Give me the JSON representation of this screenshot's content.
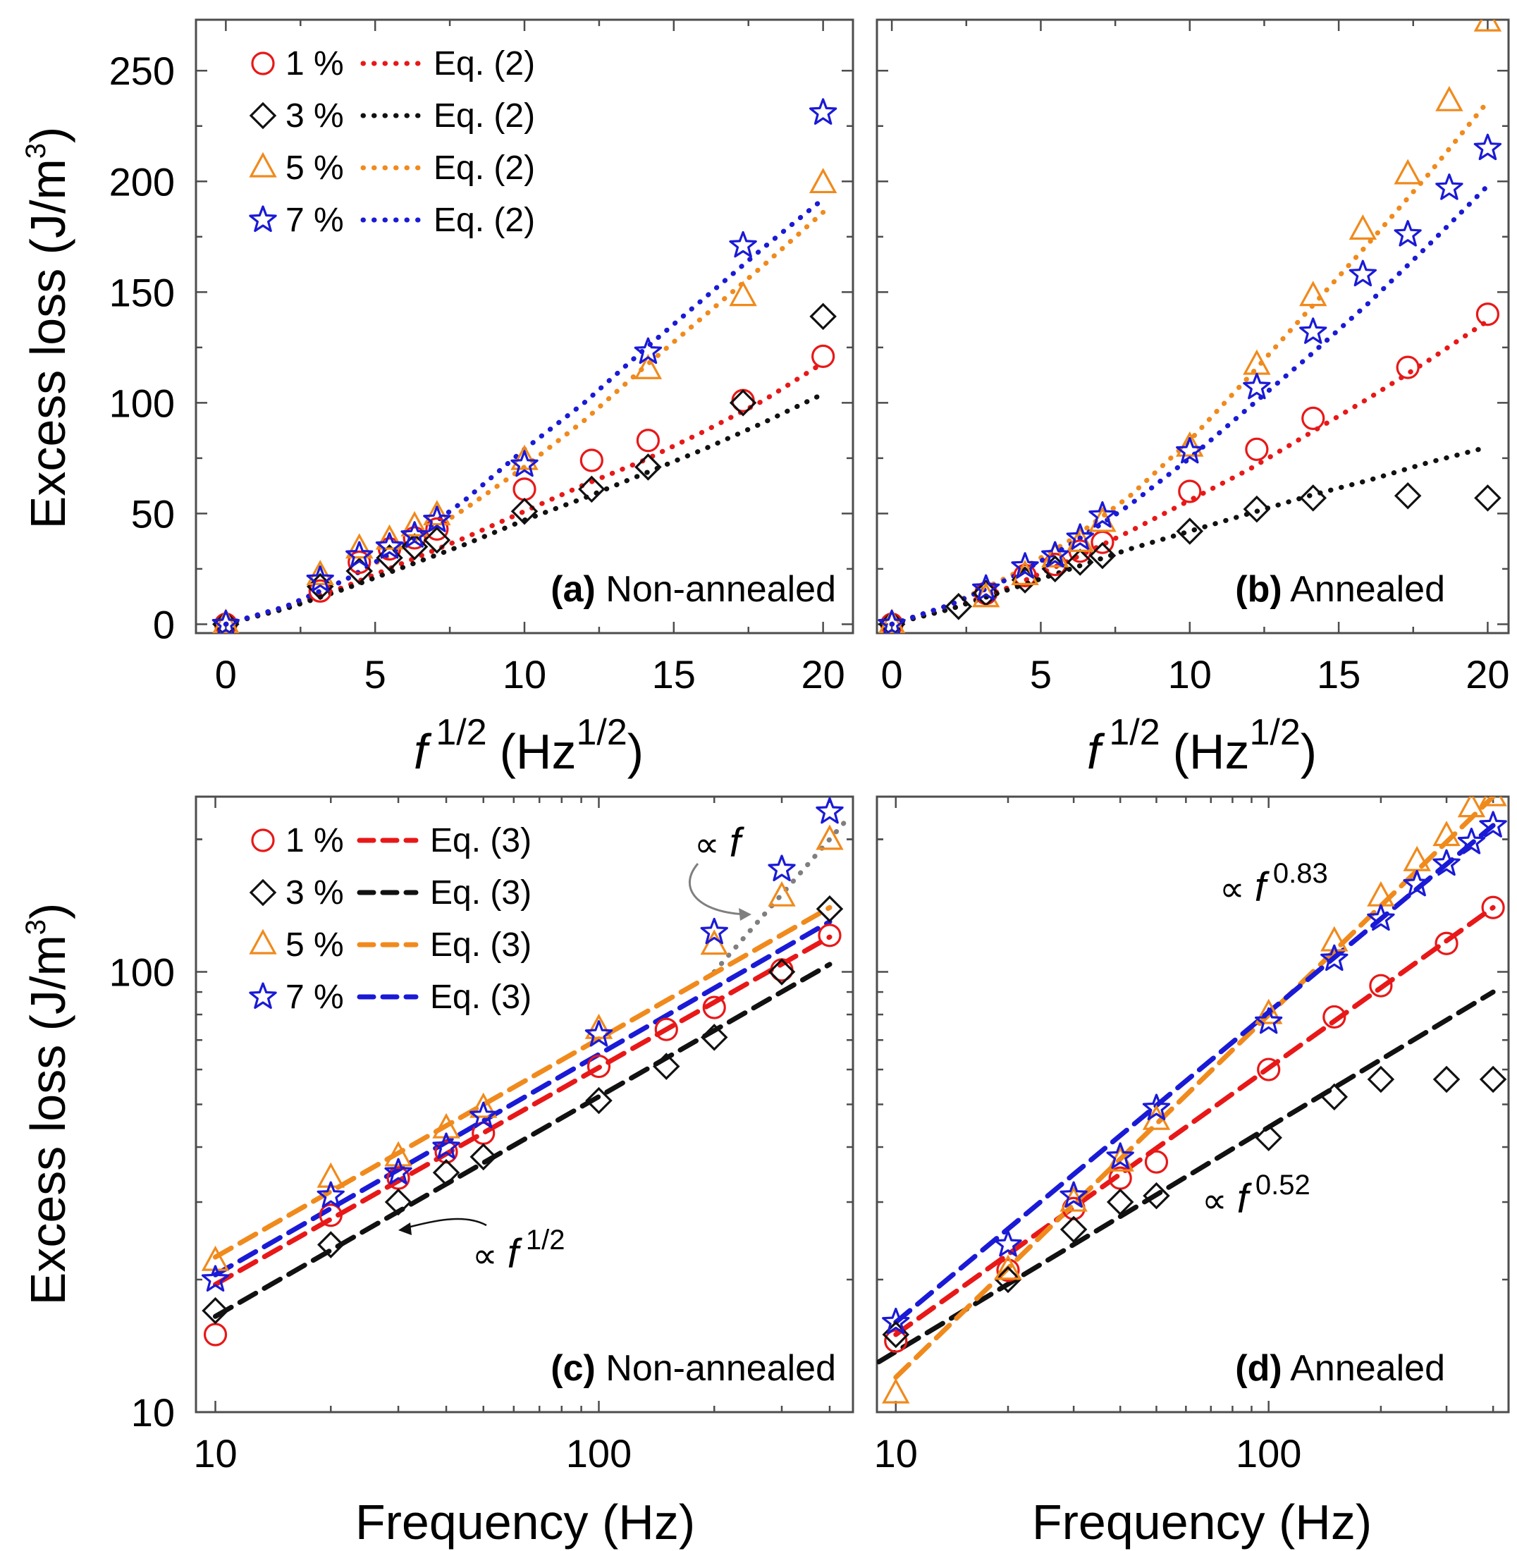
{
  "colors": {
    "1": "#e81818",
    "3": "#111111",
    "5": "#f08a1c",
    "7": "#1a1ad6",
    "grey": "#7f7f7f"
  },
  "markers": {
    "1": "circle",
    "3": "diamond",
    "5": "triangle",
    "7": "star"
  },
  "fit_labels": {
    "sqrt": "Eq. (2)",
    "log": "Eq. (3)"
  },
  "series_labels": [
    "1 %",
    "3 %",
    "5 %",
    "7 %"
  ],
  "y_label": "Excess loss (J/m",
  "y_label_sup": "3",
  "y_label_close": ")",
  "x_label_sqrt": {
    "base": "f",
    "sup": "1/2",
    "unit": "(Hz",
    "unit_sup": "1/2",
    "close": ")"
  },
  "x_label_freq": "Frequency (Hz)",
  "chart_data": [
    {
      "type": "scatter",
      "panel_tag": "(a)",
      "panel_text": "Non-annealed",
      "xscale": "linear",
      "yscale": "linear",
      "xlim": [
        -1,
        21
      ],
      "ylim": [
        -4,
        273
      ],
      "xticks": [
        0,
        5,
        10,
        15,
        20
      ],
      "yticks": [
        0,
        50,
        100,
        150,
        200,
        250
      ],
      "legend_position": "top-left",
      "series": [
        {
          "key": "1",
          "name": "1 %",
          "x": [
            0,
            3.16,
            4.47,
            5.48,
            6.32,
            7.07,
            10,
            12.25,
            14.14,
            17.32,
            20
          ],
          "y": [
            0,
            15,
            28,
            34,
            39,
            43,
            61,
            74,
            83,
            101,
            121
          ],
          "fit_x": [
            0,
            2,
            4,
            6,
            8,
            10,
            12,
            14,
            16,
            18,
            20
          ],
          "fit_y": [
            0,
            7.5,
            17,
            28,
            39,
            51,
            63,
            74,
            87,
            101,
            118
          ]
        },
        {
          "key": "3",
          "name": "3 %",
          "x": [
            0,
            3.16,
            4.47,
            5.48,
            6.32,
            7.07,
            10,
            12.25,
            14.14,
            17.32,
            20
          ],
          "y": [
            0,
            17,
            24,
            30,
            35,
            38,
            51,
            61,
            71,
            100,
            139
          ],
          "fit_x": [
            0,
            2,
            4,
            6,
            8,
            10,
            12,
            14,
            16,
            18,
            20
          ],
          "fit_y": [
            0,
            7,
            16,
            26,
            36,
            47,
            57,
            68,
            79,
            91,
            104
          ]
        },
        {
          "key": "5",
          "name": "5 %",
          "x": [
            0,
            3.16,
            4.47,
            5.48,
            6.32,
            7.07,
            10,
            14.14,
            17.32,
            20
          ],
          "y": [
            0,
            22,
            34,
            38,
            44,
            49,
            74,
            115,
            148,
            199
          ],
          "fit_x": [
            0,
            2,
            4,
            6,
            8,
            10,
            12,
            14,
            16,
            18,
            20
          ],
          "fit_y": [
            0,
            8,
            20,
            35,
            52,
            71,
            92,
            116,
            139,
            162,
            186
          ]
        },
        {
          "key": "7",
          "name": "7 %",
          "x": [
            0,
            3.16,
            4.47,
            5.48,
            6.32,
            7.07,
            10,
            14.14,
            17.32,
            20
          ],
          "y": [
            0,
            20,
            31,
            35,
            40,
            47,
            72,
            123,
            171,
            231
          ],
          "fit_x": [
            0,
            2,
            4,
            6,
            8,
            10,
            12,
            14,
            16,
            18,
            20
          ],
          "fit_y": [
            0,
            8,
            20,
            36,
            56,
            79,
            100,
            124,
            147,
            170,
            192
          ]
        }
      ]
    },
    {
      "type": "scatter",
      "panel_tag": "(b)",
      "panel_text": "Annealed",
      "xscale": "linear",
      "yscale": "linear",
      "xlim": [
        -0.5,
        20.7
      ],
      "ylim": [
        -4,
        273
      ],
      "xticks": [
        0,
        5,
        10,
        15,
        20
      ],
      "yticks": [
        0,
        50,
        100,
        150,
        200,
        250
      ],
      "series": [
        {
          "key": "1",
          "name": "1 %",
          "x": [
            0,
            3.16,
            4.47,
            5.48,
            6.32,
            7.07,
            10,
            12.25,
            14.14,
            17.32,
            20
          ],
          "y": [
            0,
            14,
            22,
            27,
            33,
            37,
            60,
            79,
            93,
            116,
            140
          ],
          "fit_x": [
            0,
            2,
            4,
            6,
            8,
            10,
            12,
            14,
            16,
            18,
            20
          ],
          "fit_y": [
            0,
            7,
            17,
            29,
            42,
            56,
            70,
            86,
            102,
            119,
            137
          ]
        },
        {
          "key": "3",
          "name": "3 %",
          "x": [
            0,
            2.24,
            3.16,
            4.47,
            5.48,
            6.32,
            7.07,
            10,
            12.25,
            14.14,
            17.32,
            20
          ],
          "y": [
            0,
            8,
            14,
            20,
            25,
            28,
            31,
            42,
            52,
            57,
            58,
            57
          ],
          "fit_x": [
            0,
            2,
            4,
            6,
            8,
            10,
            12,
            14,
            16,
            18,
            20
          ],
          "fit_y": [
            0,
            7,
            16,
            25,
            34,
            42,
            50,
            58,
            65,
            73,
            80
          ]
        },
        {
          "key": "5",
          "name": "5 %",
          "x": [
            0,
            3.16,
            4.47,
            5.48,
            6.32,
            7.07,
            10,
            12.25,
            14.14,
            15.81,
            17.32,
            18.71,
            20
          ],
          "y": [
            0,
            12,
            22,
            30,
            37,
            46,
            80,
            117,
            148,
            178,
            203,
            236,
            272
          ],
          "fit_x": [
            0,
            2,
            4,
            6,
            8,
            10,
            12,
            14,
            16,
            18,
            20
          ],
          "fit_y": [
            0,
            9,
            22,
            38,
            58,
            83,
            112,
            142,
            172,
            203,
            236
          ]
        },
        {
          "key": "7",
          "name": "7 %",
          "x": [
            0,
            3.16,
            4.47,
            5.48,
            6.32,
            7.07,
            10,
            12.25,
            14.14,
            15.81,
            17.32,
            18.71,
            20
          ],
          "y": [
            0,
            16,
            26,
            31,
            39,
            49,
            78,
            107,
            132,
            158,
            176,
            197,
            215
          ],
          "fit_x": [
            0,
            2,
            4,
            6,
            8,
            10,
            12,
            14,
            16,
            18,
            20
          ],
          "fit_y": [
            0,
            9,
            21,
            36,
            54,
            75,
            98,
            121,
            145,
            171,
            198
          ]
        }
      ]
    },
    {
      "type": "scatter",
      "panel_tag": "(c)",
      "panel_text": "Non-annealed",
      "xscale": "log",
      "yscale": "log",
      "xlim": [
        8.9,
        460
      ],
      "ylim": [
        10,
        250
      ],
      "xticks": [
        10,
        100
      ],
      "yticks": [
        10,
        100
      ],
      "legend_position": "top-left",
      "annotations": [
        {
          "id": "prop-f",
          "sym": "∝",
          "base": "f",
          "sup": "",
          "color": "grey"
        },
        {
          "id": "prop-sqrt",
          "sym": "∝",
          "base": "f",
          "sup": "1/2",
          "color": "3"
        }
      ],
      "guide_line": {
        "x": [
          200,
          440
        ],
        "y": [
          100,
          220
        ],
        "color": "grey"
      },
      "series": [
        {
          "key": "1",
          "name": "1 %",
          "x": [
            10,
            20,
            30,
            40,
            50,
            100,
            150,
            200,
            300,
            400
          ],
          "y": [
            15,
            28,
            34,
            39,
            43,
            61,
            74,
            83,
            101,
            121
          ],
          "fit_x": [
            10,
            400
          ],
          "fit_y": [
            19.5,
            120
          ]
        },
        {
          "key": "3",
          "name": "3 %",
          "x": [
            10,
            20,
            30,
            40,
            50,
            100,
            150,
            200,
            300,
            400
          ],
          "y": [
            17,
            24,
            30,
            35,
            38,
            51,
            61,
            71,
            100,
            139
          ],
          "fit_x": [
            10,
            400
          ],
          "fit_y": [
            16.5,
            104
          ]
        },
        {
          "key": "5",
          "name": "5 %",
          "x": [
            10,
            20,
            30,
            40,
            50,
            100,
            200,
            300,
            400
          ],
          "y": [
            22,
            34,
            38,
            44,
            49,
            74,
            115,
            148,
            199
          ],
          "fit_x": [
            10,
            400
          ],
          "fit_y": [
            22.5,
            140
          ]
        },
        {
          "key": "7",
          "name": "7 %",
          "x": [
            10,
            20,
            30,
            40,
            50,
            100,
            200,
            300,
            400
          ],
          "y": [
            20,
            31,
            35,
            40,
            47,
            72,
            123,
            171,
            231
          ],
          "fit_x": [
            10,
            400
          ],
          "fit_y": [
            20.5,
            130
          ]
        }
      ]
    },
    {
      "type": "scatter",
      "panel_tag": "(d)",
      "panel_text": "Annealed",
      "xscale": "log",
      "yscale": "log",
      "xlim": [
        8.9,
        440
      ],
      "ylim": [
        10,
        250
      ],
      "xticks": [
        10,
        100
      ],
      "yticks": [
        10,
        100
      ],
      "annotations": [
        {
          "id": "prop-083",
          "sym": "∝",
          "base": "f",
          "sup": "0.83",
          "color": "5"
        },
        {
          "id": "prop-052",
          "sym": "∝",
          "base": "f",
          "sup": "0.52",
          "color": "3"
        }
      ],
      "series": [
        {
          "key": "1",
          "name": "1 %",
          "x": [
            10,
            20,
            30,
            40,
            50,
            100,
            150,
            200,
            300,
            400
          ],
          "y": [
            14.5,
            21,
            29,
            34,
            37,
            60,
            79,
            93,
            116,
            140
          ],
          "fit_x": [
            10,
            400
          ],
          "fit_y": [
            15,
            140
          ]
        },
        {
          "key": "3",
          "name": "3 %",
          "x": [
            10,
            20,
            30,
            40,
            50,
            100,
            150,
            200,
            300,
            400
          ],
          "y": [
            15,
            20,
            26,
            30,
            31,
            42,
            52,
            57,
            57,
            57
          ],
          "fit_x": [
            9,
            400
          ],
          "fit_y": [
            13,
            90
          ]
        },
        {
          "key": "5",
          "name": "5 %",
          "x": [
            10,
            20,
            30,
            40,
            50,
            100,
            150,
            200,
            250,
            300,
            350,
            400
          ],
          "y": [
            11,
            21,
            30,
            37,
            46,
            80,
            117,
            148,
            178,
            203,
            236,
            250
          ],
          "fit_x": [
            10,
            400
          ],
          "fit_y": [
            12,
            250
          ]
        },
        {
          "key": "7",
          "name": "7 %",
          "x": [
            10,
            20,
            30,
            40,
            50,
            100,
            150,
            200,
            250,
            300,
            350,
            400
          ],
          "y": [
            16,
            24,
            31,
            38,
            49,
            77,
            107,
            132,
            158,
            176,
            197,
            215
          ],
          "fit_x": [
            10,
            400
          ],
          "fit_y": [
            16,
            215
          ]
        }
      ]
    }
  ]
}
